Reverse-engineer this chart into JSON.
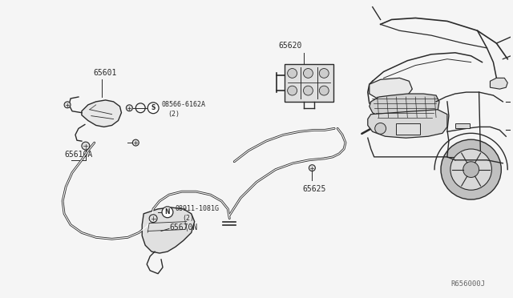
{
  "bg_color": "#f5f5f5",
  "line_color": "#2a2a2a",
  "text_color": "#2a2a2a",
  "fig_width": 6.4,
  "fig_height": 3.72,
  "dpi": 100,
  "watermark": "R656000J",
  "label_65601": "65601",
  "label_65610A": "65610A",
  "label_65625": "65625",
  "label_65620": "65620",
  "label_bolt1": "08566-6162A",
  "label_bolt1b": "(2)",
  "label_bolt2": "08911-1081G",
  "label_bolt2b": "(2)",
  "label_65670N": "65670N"
}
